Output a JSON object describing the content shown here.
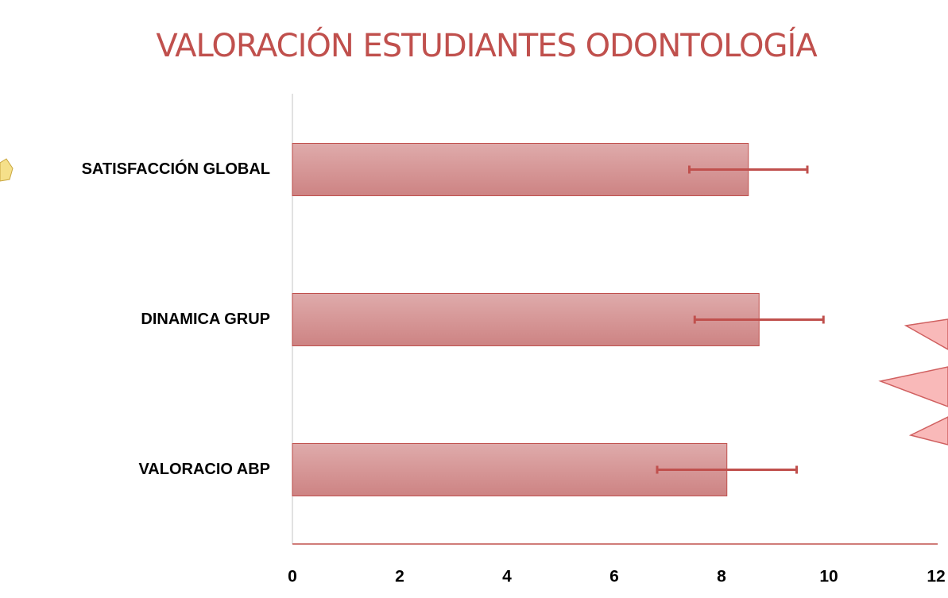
{
  "chart_data": {
    "type": "barh",
    "title": "VALORACIÓN ESTUDIANTES ODONTOLOGÍA",
    "categories": [
      "SATISFACCIÓN GLOBAL",
      "DINAMICA GRUP",
      "VALORACIO ABP"
    ],
    "values": [
      8.5,
      8.7,
      8.1
    ],
    "errors": [
      1.1,
      1.2,
      1.3
    ],
    "color": "#c0504d",
    "xlim": [
      0,
      12
    ],
    "xticks": [
      0,
      2,
      4,
      6,
      8,
      10,
      12
    ]
  }
}
